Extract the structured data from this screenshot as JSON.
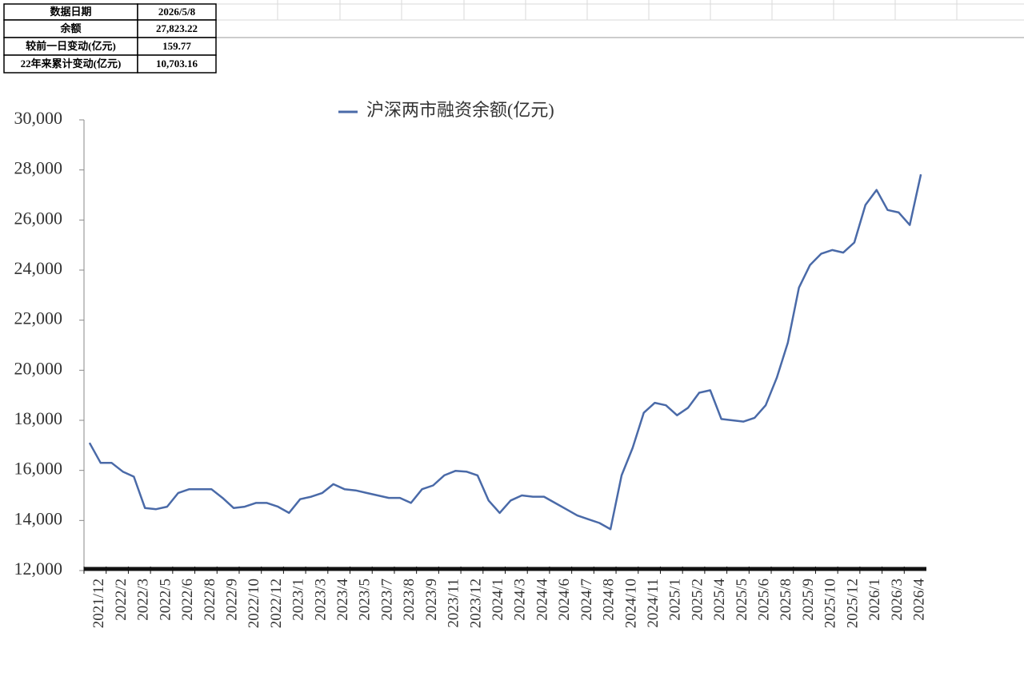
{
  "table": {
    "rows": [
      [
        "数据日期",
        "2026/5/8"
      ],
      [
        "余额",
        "27,823.22"
      ],
      [
        "较前一日变动(亿元)",
        "159.77"
      ],
      [
        "22年来累计变动(亿元)",
        "10,703.16"
      ]
    ]
  },
  "chart_data": {
    "type": "line",
    "categories": [
      "2021/12",
      null,
      "2022/2",
      null,
      "2022/3",
      null,
      "2022/5",
      null,
      "2022/6",
      null,
      "2022/8",
      null,
      "2022/9",
      null,
      "2022/10",
      null,
      "2022/12",
      null,
      "2023/1",
      null,
      "2023/3",
      null,
      "2023/4",
      null,
      "2023/5",
      null,
      "2023/7",
      null,
      "2023/8",
      null,
      "2023/9",
      null,
      "2023/11",
      null,
      "2023/12",
      null,
      "2024/1",
      null,
      "2024/3",
      null,
      "2024/4",
      null,
      "2024/6",
      null,
      "2024/7",
      null,
      "2024/8",
      null,
      "2024/10",
      null,
      "2024/11",
      null,
      "2025/1",
      null,
      "2025/2",
      null,
      "2025/4",
      null,
      "2025/5",
      null,
      "2025/6",
      null,
      "2025/8",
      null,
      "2025/9",
      null,
      "2025/10",
      null,
      "2025/12",
      null,
      "2026/1",
      null,
      "2026/3",
      null,
      "2026/4",
      null
    ],
    "series": [
      {
        "name": "沪深两市融资余额(亿元)",
        "color": "#4a6aa8",
        "values": [
          17100,
          16300,
          16300,
          15950,
          15750,
          14500,
          14450,
          14550,
          15100,
          15250,
          15250,
          15250,
          14900,
          14500,
          14550,
          14700,
          14700,
          14550,
          14300,
          14850,
          14950,
          15100,
          15450,
          15250,
          15200,
          15100,
          15000,
          14900,
          14900,
          14700,
          15250,
          15400,
          15800,
          15980,
          15950,
          15800,
          14800,
          14300,
          14800,
          15000,
          14950,
          14950,
          14700,
          14450,
          14200,
          14050,
          13900,
          13650,
          15800,
          16900,
          18300,
          18700,
          18600,
          18200,
          18500,
          19100,
          19200,
          18050,
          18000,
          17950,
          18100,
          18600,
          19700,
          21100,
          23300,
          24200,
          24650,
          24800,
          24700,
          25100,
          26600,
          27200,
          26400,
          26300,
          25800,
          27823.22
        ]
      }
    ],
    "ylim": [
      12000,
      30000
    ],
    "yticks": [
      {
        "value": 12000,
        "label": "12,000"
      },
      {
        "value": 14000,
        "label": "14,000"
      },
      {
        "value": 16000,
        "label": "16,000"
      },
      {
        "value": 18000,
        "label": "18,000"
      },
      {
        "value": 20000,
        "label": "20,000"
      },
      {
        "value": 22000,
        "label": "22,000"
      },
      {
        "value": 24000,
        "label": "24,000"
      },
      {
        "value": 26000,
        "label": "26,000"
      },
      {
        "value": 28000,
        "label": "28,000"
      },
      {
        "value": 30000,
        "label": "30,000"
      }
    ],
    "legend": "top"
  }
}
